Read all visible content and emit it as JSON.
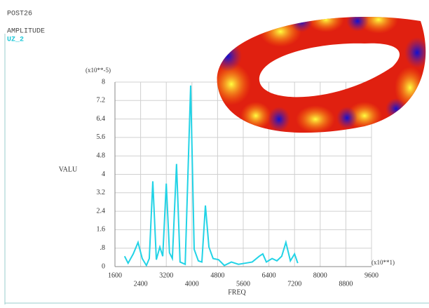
{
  "chart_data": {
    "type": "line",
    "header": [
      "POST26",
      "AMPLITUDE"
    ],
    "series_label": "UZ_2",
    "y_multiplier": "(x10**-5)",
    "x_multiplier": "(x10**1)",
    "ylabel": "VALU",
    "xlabel": "FREQ",
    "xlim": [
      1600,
      9600
    ],
    "xticks": [
      1600,
      2400,
      3200,
      4000,
      4800,
      5600,
      6400,
      7200,
      8000,
      8800,
      9600
    ],
    "ylim": [
      0,
      8
    ],
    "yticks": [
      0,
      {
        "value": 0.8,
        "label": ".8"
      },
      1.6,
      2.4,
      3.2,
      4,
      4.8,
      5.6,
      6.4,
      7.2,
      8
    ],
    "grid": true,
    "series": [
      {
        "name": "UZ_2",
        "color": "#22d3e6",
        "x": [
          1900,
          2010,
          2170,
          2320,
          2450,
          2580,
          2670,
          2780,
          2890,
          3000,
          3090,
          3200,
          3300,
          3390,
          3520,
          3630,
          3790,
          3960,
          4070,
          4200,
          4310,
          4420,
          4530,
          4660,
          4830,
          5010,
          5230,
          5450,
          5670,
          5880,
          6100,
          6210,
          6320,
          6500,
          6650,
          6800,
          6930,
          7070,
          7200,
          7300
        ],
        "values": [
          0.45,
          0.15,
          0.55,
          1.05,
          0.35,
          0.05,
          0.35,
          3.7,
          0.3,
          0.85,
          0.45,
          3.6,
          0.6,
          0.35,
          4.45,
          0.2,
          0.1,
          7.85,
          0.75,
          0.25,
          0.2,
          2.65,
          0.85,
          0.35,
          0.3,
          0.05,
          0.2,
          0.1,
          0.15,
          0.2,
          0.45,
          0.55,
          0.2,
          0.35,
          0.25,
          0.45,
          1.05,
          0.25,
          0.55,
          0.15
        ]
      }
    ]
  }
}
